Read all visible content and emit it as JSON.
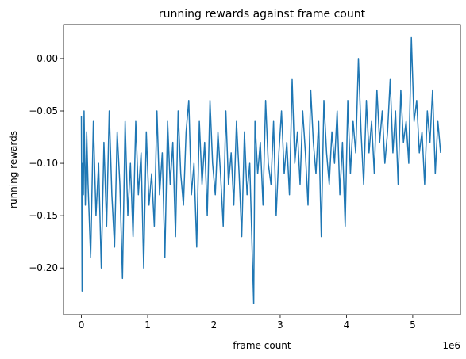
{
  "chart_data": {
    "type": "line",
    "title": "running rewards against frame count",
    "xlabel": "frame count",
    "ylabel": "running rewards",
    "x_offset_label": "1e6",
    "xlim": [
      -0.27,
      5.72
    ],
    "ylim": [
      -0.2445,
      0.0325
    ],
    "x_ticks": [
      0,
      1,
      2,
      3,
      4,
      5
    ],
    "x_tick_labels": [
      "0",
      "1",
      "2",
      "3",
      "4",
      "5"
    ],
    "y_ticks": [
      -0.2,
      -0.15,
      -0.1,
      -0.05,
      0.0
    ],
    "y_tick_labels": [
      "−0.20",
      "−0.15",
      "−0.10",
      "−0.05",
      "0.00"
    ],
    "grid": false,
    "line_color": "#1f77b4",
    "series": [
      {
        "x": [
          0.0,
          0.01,
          0.02,
          0.03,
          0.04,
          0.06,
          0.08,
          0.1,
          0.14,
          0.18,
          0.22,
          0.26,
          0.3,
          0.34,
          0.38,
          0.42,
          0.46,
          0.5,
          0.54,
          0.58,
          0.62,
          0.66,
          0.7,
          0.74,
          0.78,
          0.82,
          0.86,
          0.9,
          0.94,
          0.98,
          1.02,
          1.06,
          1.1,
          1.14,
          1.18,
          1.22,
          1.26,
          1.3,
          1.34,
          1.38,
          1.42,
          1.46,
          1.5,
          1.54,
          1.58,
          1.62,
          1.66,
          1.7,
          1.74,
          1.78,
          1.82,
          1.86,
          1.9,
          1.94,
          1.98,
          2.02,
          2.06,
          2.1,
          2.14,
          2.18,
          2.22,
          2.26,
          2.3,
          2.34,
          2.38,
          2.42,
          2.46,
          2.5,
          2.54,
          2.58,
          2.6,
          2.62,
          2.66,
          2.7,
          2.74,
          2.78,
          2.82,
          2.86,
          2.9,
          2.94,
          2.98,
          3.02,
          3.06,
          3.1,
          3.14,
          3.18,
          3.22,
          3.26,
          3.3,
          3.34,
          3.38,
          3.42,
          3.46,
          3.5,
          3.54,
          3.58,
          3.62,
          3.66,
          3.7,
          3.74,
          3.78,
          3.82,
          3.86,
          3.9,
          3.94,
          3.98,
          4.02,
          4.06,
          4.1,
          4.14,
          4.18,
          4.22,
          4.26,
          4.3,
          4.34,
          4.38,
          4.42,
          4.46,
          4.5,
          4.54,
          4.58,
          4.62,
          4.66,
          4.7,
          4.74,
          4.78,
          4.82,
          4.86,
          4.9,
          4.94,
          4.98,
          5.02,
          5.06,
          5.1,
          5.14,
          5.18,
          5.22,
          5.26,
          5.3,
          5.34,
          5.38,
          5.42
        ],
        "y": [
          -0.055,
          -0.222,
          -0.1,
          -0.13,
          -0.05,
          -0.14,
          -0.07,
          -0.12,
          -0.19,
          -0.06,
          -0.15,
          -0.1,
          -0.2,
          -0.08,
          -0.16,
          -0.05,
          -0.13,
          -0.18,
          -0.07,
          -0.12,
          -0.21,
          -0.06,
          -0.15,
          -0.1,
          -0.17,
          -0.06,
          -0.13,
          -0.09,
          -0.2,
          -0.07,
          -0.14,
          -0.11,
          -0.16,
          -0.05,
          -0.13,
          -0.09,
          -0.19,
          -0.06,
          -0.12,
          -0.08,
          -0.17,
          -0.05,
          -0.11,
          -0.14,
          -0.07,
          -0.04,
          -0.13,
          -0.1,
          -0.18,
          -0.06,
          -0.12,
          -0.08,
          -0.15,
          -0.04,
          -0.1,
          -0.13,
          -0.07,
          -0.11,
          -0.16,
          -0.05,
          -0.12,
          -0.09,
          -0.14,
          -0.06,
          -0.11,
          -0.17,
          -0.07,
          -0.13,
          -0.1,
          -0.19,
          -0.234,
          -0.06,
          -0.11,
          -0.08,
          -0.14,
          -0.04,
          -0.1,
          -0.12,
          -0.06,
          -0.15,
          -0.09,
          -0.05,
          -0.11,
          -0.08,
          -0.13,
          -0.02,
          -0.1,
          -0.07,
          -0.12,
          -0.05,
          -0.09,
          -0.14,
          -0.03,
          -0.08,
          -0.11,
          -0.06,
          -0.17,
          -0.04,
          -0.09,
          -0.12,
          -0.07,
          -0.1,
          -0.05,
          -0.13,
          -0.08,
          -0.16,
          -0.04,
          -0.11,
          -0.06,
          -0.09,
          -0.0,
          -0.07,
          -0.12,
          -0.04,
          -0.09,
          -0.06,
          -0.11,
          -0.03,
          -0.08,
          -0.05,
          -0.1,
          -0.07,
          -0.02,
          -0.09,
          -0.05,
          -0.12,
          -0.03,
          -0.08,
          -0.06,
          -0.1,
          0.02,
          -0.06,
          -0.04,
          -0.09,
          -0.07,
          -0.12,
          -0.05,
          -0.08,
          -0.03,
          -0.11,
          -0.06,
          -0.09
        ]
      }
    ]
  }
}
